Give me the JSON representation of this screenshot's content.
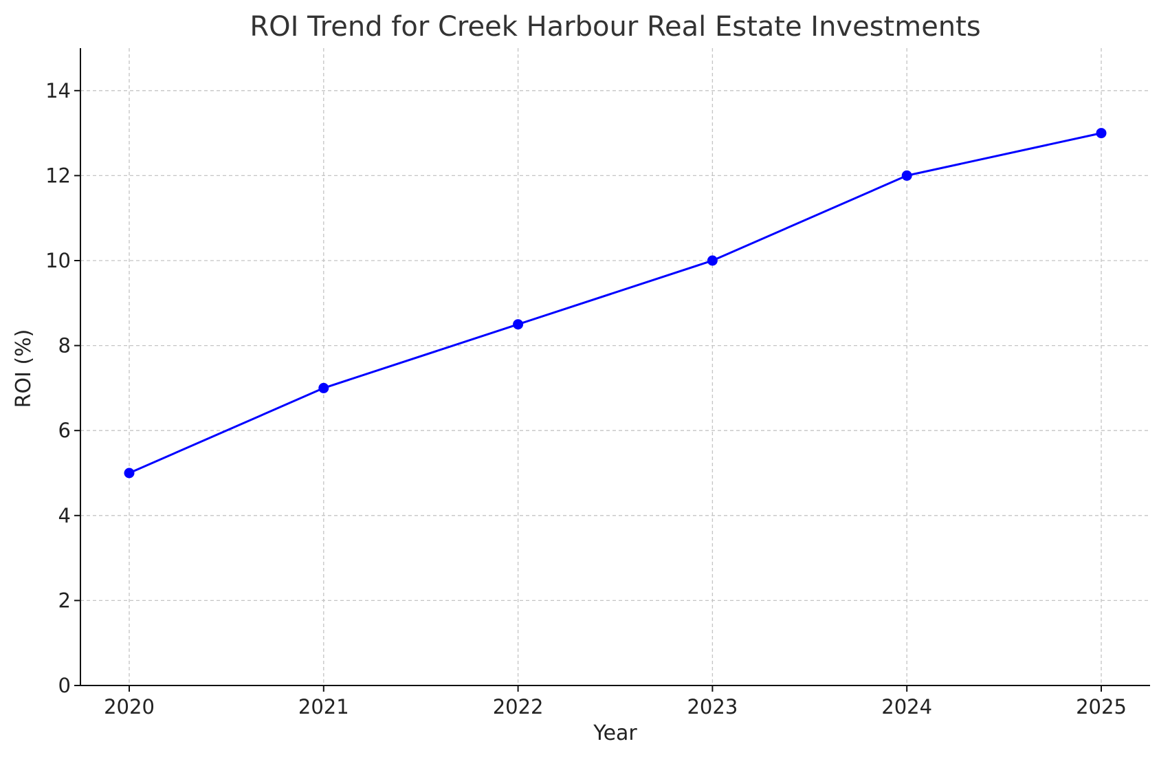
{
  "chart_data": {
    "type": "line",
    "title": "ROI Trend for Creek Harbour Real Estate Investments",
    "xlabel": "Year",
    "ylabel": "ROI (%)",
    "categories": [
      "2020",
      "2021",
      "2022",
      "2023",
      "2024",
      "2025"
    ],
    "yticks": [
      0,
      2,
      4,
      6,
      8,
      10,
      12,
      14
    ],
    "ylim": [
      0,
      15
    ],
    "grid": true,
    "legend": "none",
    "series": [
      {
        "values": [
          5,
          7,
          8.5,
          10,
          12,
          13
        ],
        "color": "#0000ff",
        "marker": "circle"
      }
    ],
    "colors": {
      "line": "#0000ff",
      "grid": "#c4c4c4",
      "axis": "#111111",
      "title": "#333333"
    }
  }
}
